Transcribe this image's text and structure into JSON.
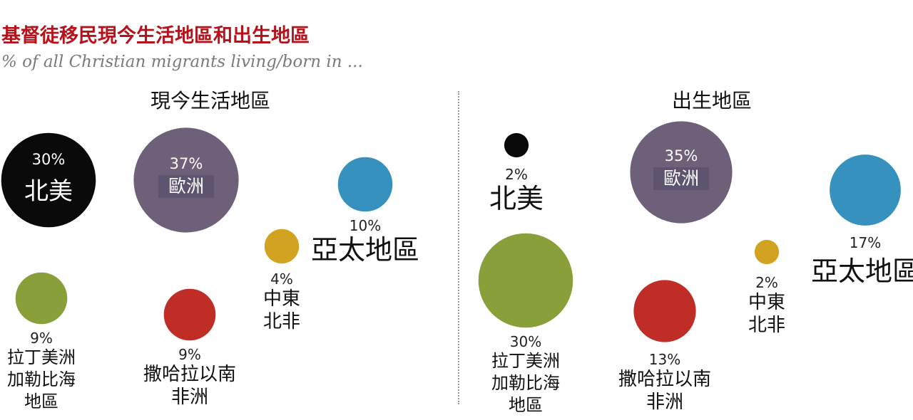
{
  "title": "基督徒移民現今生活地區和出生地區",
  "subtitle": "% of all Christian migrants living/born in ...",
  "chart_data": [
    {
      "type": "bubble",
      "title": "現今生活地區",
      "categories": [
        "北美",
        "歐洲",
        "亞太地區",
        "中東北非",
        "拉丁美洲加勒比海地區",
        "撒哈拉以南非洲"
      ],
      "values": [
        30,
        37,
        10,
        4,
        9,
        9
      ],
      "labels": [
        {
          "pct": "30%",
          "name": [
            "北美"
          ]
        },
        {
          "pct": "37%",
          "name": [
            "歐洲"
          ]
        },
        {
          "pct": "10%",
          "name": [
            "亞太地區"
          ]
        },
        {
          "pct": "4%",
          "name": [
            "中東",
            "北非"
          ]
        },
        {
          "pct": "9%",
          "name": [
            "拉丁美洲",
            "加勒比海",
            "地區"
          ]
        },
        {
          "pct": "9%",
          "name": [
            "撒哈拉以南",
            "非洲"
          ]
        }
      ]
    },
    {
      "type": "bubble",
      "title": "出生地區",
      "categories": [
        "北美",
        "歐洲",
        "亞太地區",
        "中東北非",
        "拉丁美洲加勒比海地區",
        "撒哈拉以南非洲"
      ],
      "values": [
        2,
        35,
        17,
        2,
        30,
        13
      ],
      "labels": [
        {
          "pct": "2%",
          "name": [
            "北美"
          ]
        },
        {
          "pct": "35%",
          "name": [
            "歐洲"
          ]
        },
        {
          "pct": "17%",
          "name": [
            "亞太地區"
          ]
        },
        {
          "pct": "2%",
          "name": [
            "中東",
            "北非"
          ]
        },
        {
          "pct": "30%",
          "name": [
            "拉丁美洲",
            "加勒比海",
            "地區"
          ]
        },
        {
          "pct": "13%",
          "name": [
            "撒哈拉以南",
            "非洲"
          ]
        }
      ]
    }
  ],
  "colors": {
    "北美": "#0a0a0a",
    "歐洲": "#6e6079",
    "亞太地區": "#3791bf",
    "中東北非": "#d1a321",
    "拉丁美洲加勒比海地區": "#89a03a",
    "撒哈拉以南非洲": "#c02d27"
  }
}
